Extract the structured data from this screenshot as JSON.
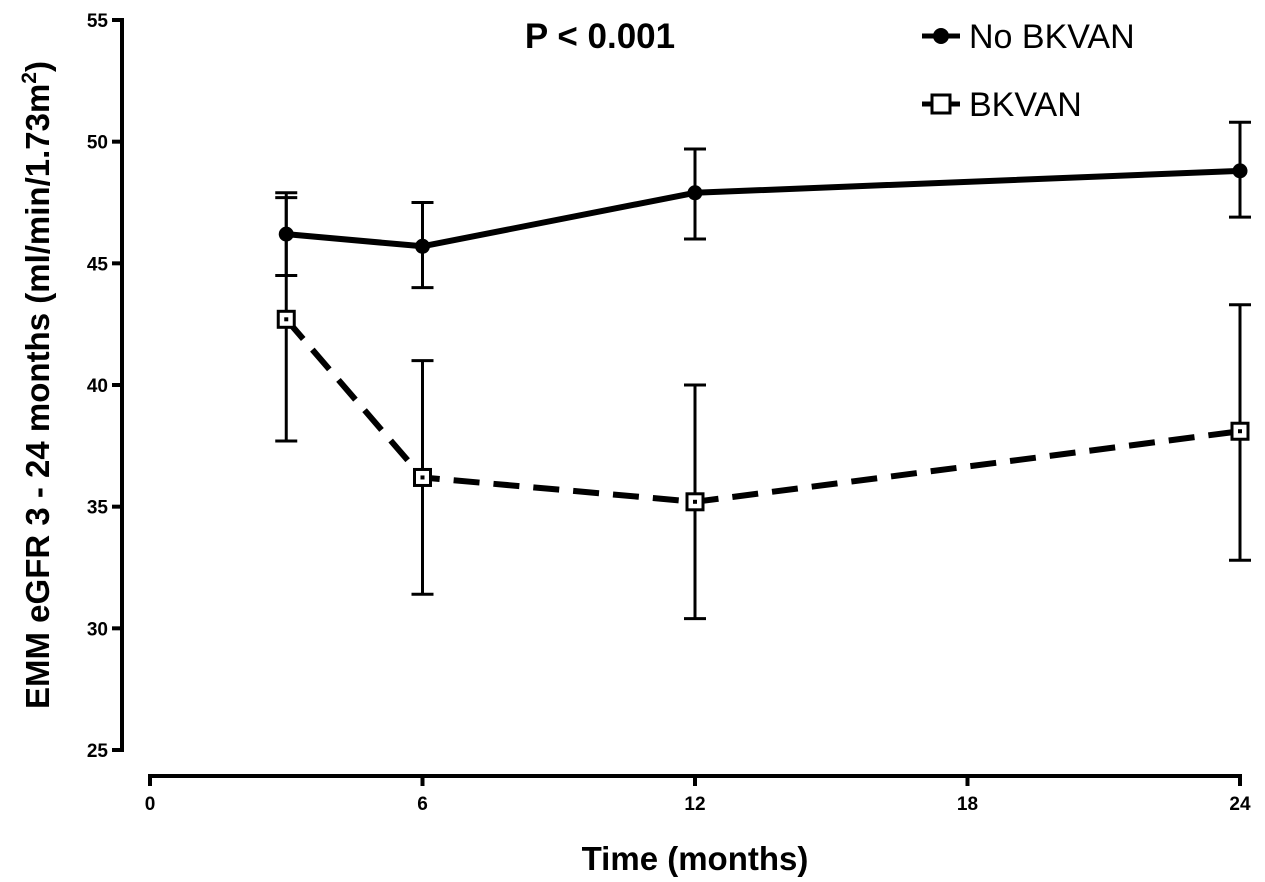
{
  "chart_data": {
    "type": "line",
    "xlabel": "Time (months)",
    "ylabel": "EMM eGFR 3 - 24 months (ml/min/1.73m",
    "ylabel_superscript": "2",
    "ylabel_close": ")",
    "annotation": "P < 0.001",
    "xlim": [
      0,
      24
    ],
    "ylim": [
      25,
      55
    ],
    "x_ticks": [
      0,
      6,
      12,
      18,
      24
    ],
    "y_ticks": [
      25,
      30,
      35,
      40,
      45,
      50,
      55
    ],
    "grid": false,
    "legend_position": "top-right",
    "series": [
      {
        "name": "No BKVAN",
        "marker": "filled-circle",
        "line_style": "solid",
        "color": "#000000",
        "points": [
          {
            "x": 3,
            "y": 46.2,
            "err_low": 44.5,
            "err_high": 47.9
          },
          {
            "x": 6,
            "y": 45.7,
            "err_low": 44.0,
            "err_high": 47.5
          },
          {
            "x": 12,
            "y": 47.9,
            "err_low": 46.0,
            "err_high": 49.7
          },
          {
            "x": 24,
            "y": 48.8,
            "err_low": 46.9,
            "err_high": 50.8
          }
        ]
      },
      {
        "name": "BKVAN",
        "marker": "open-square",
        "line_style": "dashed",
        "color": "#000000",
        "points": [
          {
            "x": 3,
            "y": 42.7,
            "err_low": 37.7,
            "err_high": 47.7
          },
          {
            "x": 6,
            "y": 36.2,
            "err_low": 31.4,
            "err_high": 41.0
          },
          {
            "x": 12,
            "y": 35.2,
            "err_low": 30.4,
            "err_high": 40.0
          },
          {
            "x": 24,
            "y": 38.1,
            "err_low": 32.8,
            "err_high": 43.3
          }
        ]
      }
    ]
  }
}
